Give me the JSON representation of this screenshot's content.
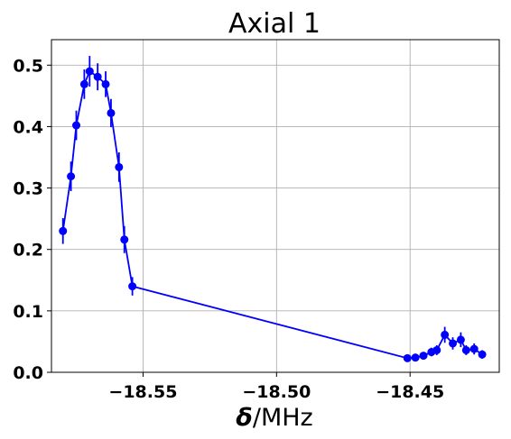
{
  "chart_data": {
    "type": "line",
    "title": "Axial 1",
    "xlabel_symbol": "δ",
    "xlabel_unit": "/MHz",
    "xlim": [
      -18.5843,
      -18.4166
    ],
    "ylim": [
      0.0,
      0.5415
    ],
    "xticks": [
      -18.55,
      -18.5,
      -18.45
    ],
    "xtick_labels": [
      "−18.55",
      "−18.50",
      "−18.45"
    ],
    "yticks": [
      0.0,
      0.1,
      0.2,
      0.3,
      0.4,
      0.5
    ],
    "ytick_labels": [
      "0.0",
      "0.1",
      "0.2",
      "0.3",
      "0.4",
      "0.5"
    ],
    "grid": true,
    "series": [
      {
        "color": "#0000ff",
        "marker": "circle",
        "errorbars": true,
        "points": [
          {
            "x": -18.58,
            "y": 0.23,
            "err": 0.021
          },
          {
            "x": -18.577,
            "y": 0.319,
            "err": 0.024
          },
          {
            "x": -18.575,
            "y": 0.402,
            "err": 0.024
          },
          {
            "x": -18.572,
            "y": 0.469,
            "err": 0.024
          },
          {
            "x": -18.57,
            "y": 0.49,
            "err": 0.025
          },
          {
            "x": -18.567,
            "y": 0.481,
            "err": 0.022
          },
          {
            "x": -18.564,
            "y": 0.469,
            "err": 0.021
          },
          {
            "x": -18.562,
            "y": 0.422,
            "err": 0.023
          },
          {
            "x": -18.559,
            "y": 0.334,
            "err": 0.024
          },
          {
            "x": -18.557,
            "y": 0.216,
            "err": 0.022
          },
          {
            "x": -18.554,
            "y": 0.14,
            "err": 0.015
          },
          {
            "x": -18.451,
            "y": 0.023,
            "err": 0.004
          },
          {
            "x": -18.448,
            "y": 0.024,
            "err": 0.005
          },
          {
            "x": -18.445,
            "y": 0.027,
            "err": 0.006
          },
          {
            "x": -18.442,
            "y": 0.033,
            "err": 0.007
          },
          {
            "x": -18.44,
            "y": 0.036,
            "err": 0.008
          },
          {
            "x": -18.437,
            "y": 0.061,
            "err": 0.013
          },
          {
            "x": -18.434,
            "y": 0.047,
            "err": 0.01
          },
          {
            "x": -18.431,
            "y": 0.053,
            "err": 0.012
          },
          {
            "x": -18.429,
            "y": 0.036,
            "err": 0.008
          },
          {
            "x": -18.426,
            "y": 0.038,
            "err": 0.009
          },
          {
            "x": -18.423,
            "y": 0.029,
            "err": 0.007
          }
        ]
      }
    ]
  }
}
